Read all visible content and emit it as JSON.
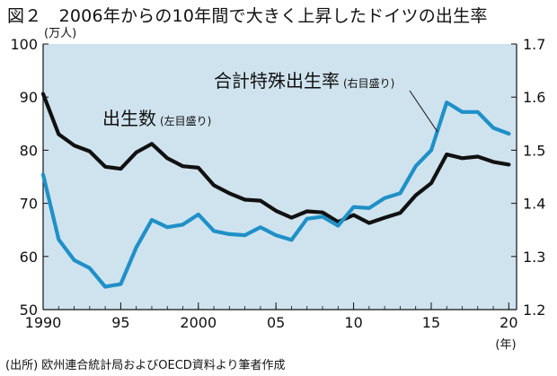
{
  "title": "図２　2006年からの10年間で大きく上昇したドイツの出生率",
  "source": "(出所) 欧州連合統計局およびOECD資料より筆者作成",
  "chart_data": {
    "type": "line",
    "title": "図２　2006年からの10年間で大きく上昇したドイツの出生率",
    "left_axis_unit": "(万人)",
    "x_unit": "(年)",
    "ylim_left": [
      50,
      100
    ],
    "ylim_right": [
      1.2,
      1.7
    ],
    "xlim": [
      1990,
      2020.5
    ],
    "y_ticks_left": [
      "50",
      "60",
      "70",
      "80",
      "90",
      "100"
    ],
    "y_ticks_right": [
      "1.2",
      "1.3",
      "1.4",
      "1.5",
      "1.6",
      "1.7"
    ],
    "x_ticks": [
      {
        "value": 1990,
        "label": "1990"
      },
      {
        "value": 1995,
        "label": "95"
      },
      {
        "value": 2000,
        "label": "2000"
      },
      {
        "value": 2005,
        "label": "05"
      },
      {
        "value": 2010,
        "label": "10"
      },
      {
        "value": 2015,
        "label": "15"
      },
      {
        "value": 2020,
        "label": "20"
      }
    ],
    "grid": false,
    "background": "#cfe3ee",
    "x": [
      1990,
      1991,
      1992,
      1993,
      1994,
      1995,
      1996,
      1997,
      1998,
      1999,
      2000,
      2001,
      2002,
      2003,
      2004,
      2005,
      2006,
      2007,
      2008,
      2009,
      2010,
      2011,
      2012,
      2013,
      2014,
      2015,
      2016,
      2017,
      2018,
      2019,
      2020
    ],
    "series": [
      {
        "name": "出生数",
        "name_note": "(左目盛り)",
        "axis": "left",
        "color": "#111111",
        "values": [
          90.6,
          83.0,
          80.9,
          79.8,
          76.9,
          76.5,
          79.6,
          81.2,
          78.5,
          77.0,
          76.7,
          73.4,
          71.9,
          70.7,
          70.5,
          68.6,
          67.3,
          68.5,
          68.3,
          66.5,
          67.8,
          66.3,
          67.3,
          68.2,
          71.5,
          73.8,
          79.2,
          78.5,
          78.8,
          77.8,
          77.3
        ]
      },
      {
        "name": "合計特殊出生率",
        "name_note": "(右目盛り)",
        "axis": "right",
        "color": "#1f90c8",
        "values": [
          1.454,
          1.332,
          1.293,
          1.278,
          1.243,
          1.248,
          1.317,
          1.369,
          1.355,
          1.36,
          1.379,
          1.348,
          1.342,
          1.34,
          1.355,
          1.34,
          1.331,
          1.371,
          1.375,
          1.358,
          1.393,
          1.391,
          1.41,
          1.419,
          1.47,
          1.5,
          1.59,
          1.572,
          1.572,
          1.542,
          1.531
        ]
      }
    ]
  }
}
